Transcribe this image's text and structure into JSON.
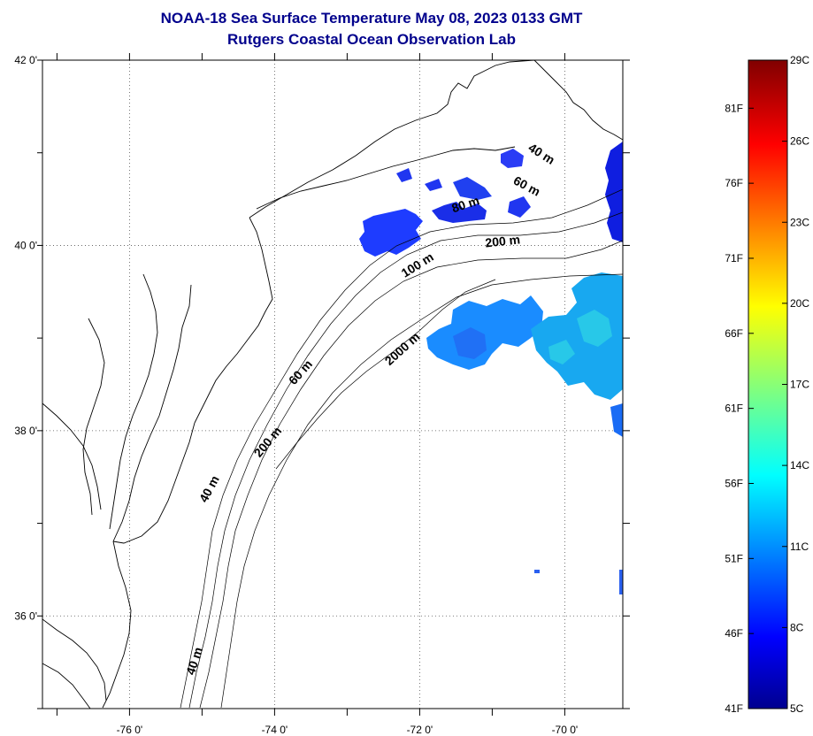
{
  "header": {
    "title_line1": "NOAA-18 Sea Surface Temperature May 08, 2023 0133 GMT",
    "title_line2": "Rutgers Coastal Ocean Observation Lab"
  },
  "map": {
    "lon_range": [
      -77.2,
      -69.2
    ],
    "lat_range": [
      35.0,
      42.0
    ],
    "x_ticks": [
      {
        "value": -76,
        "label": "-76 0'"
      },
      {
        "value": -74,
        "label": "-74 0'"
      },
      {
        "value": -72,
        "label": "-72 0'"
      },
      {
        "value": -70,
        "label": "-70 0'"
      }
    ],
    "y_ticks": [
      {
        "value": 42,
        "label": "42 0'"
      },
      {
        "value": 40,
        "label": "40 0'"
      },
      {
        "value": 38,
        "label": "38 0'"
      },
      {
        "value": 36,
        "label": "36 0'"
      }
    ],
    "gridlines": true,
    "depth_contour_labels": [
      {
        "text": "40 m",
        "lon": -70.35,
        "lat": 40.95
      },
      {
        "text": "60 m",
        "lon": -70.55,
        "lat": 40.6
      },
      {
        "text": "80 m",
        "lon": -71.35,
        "lat": 40.4
      },
      {
        "text": "200 m",
        "lon": -70.85,
        "lat": 40.0
      },
      {
        "text": "100 m",
        "lon": -72.0,
        "lat": 39.75
      },
      {
        "text": "2000 m",
        "lon": -72.2,
        "lat": 38.85
      },
      {
        "text": "60 m",
        "lon": -73.6,
        "lat": 38.6
      },
      {
        "text": "200 m",
        "lon": -74.05,
        "lat": 37.85
      },
      {
        "text": "40 m",
        "lon": -74.85,
        "lat": 37.35
      },
      {
        "text": "40 m",
        "lon": -75.05,
        "lat": 35.5
      }
    ]
  },
  "colorbar": {
    "colormap": "jet",
    "range_c": [
      5,
      29
    ],
    "celsius_labels": [
      {
        "value": 29,
        "label": "29C"
      },
      {
        "value": 26,
        "label": "26C"
      },
      {
        "value": 23,
        "label": "23C"
      },
      {
        "value": 20,
        "label": "20C"
      },
      {
        "value": 17,
        "label": "17C"
      },
      {
        "value": 14,
        "label": "14C"
      },
      {
        "value": 11,
        "label": "11C"
      },
      {
        "value": 8,
        "label": "8C"
      },
      {
        "value": 5,
        "label": "5C"
      }
    ],
    "fahrenheit_labels": [
      {
        "value": 81,
        "label": "81F"
      },
      {
        "value": 76,
        "label": "76F"
      },
      {
        "value": 71,
        "label": "71F"
      },
      {
        "value": 66,
        "label": "66F"
      },
      {
        "value": 61,
        "label": "61F"
      },
      {
        "value": 56,
        "label": "56F"
      },
      {
        "value": 51,
        "label": "51F"
      },
      {
        "value": 46,
        "label": "46F"
      },
      {
        "value": 41,
        "label": "41F"
      }
    ]
  },
  "sst_patches": [
    {
      "name": "sst-patch-new-york-bight",
      "temp_c": 8.5
    },
    {
      "name": "sst-patch-shelf-north",
      "temp_c": 8.0
    },
    {
      "name": "sst-patch-slope-west",
      "temp_c": 10.5
    },
    {
      "name": "sst-patch-slope-east",
      "temp_c": 12.0
    },
    {
      "name": "sst-patch-gulf-of-maine-edge",
      "temp_c": 7.0
    }
  ]
}
